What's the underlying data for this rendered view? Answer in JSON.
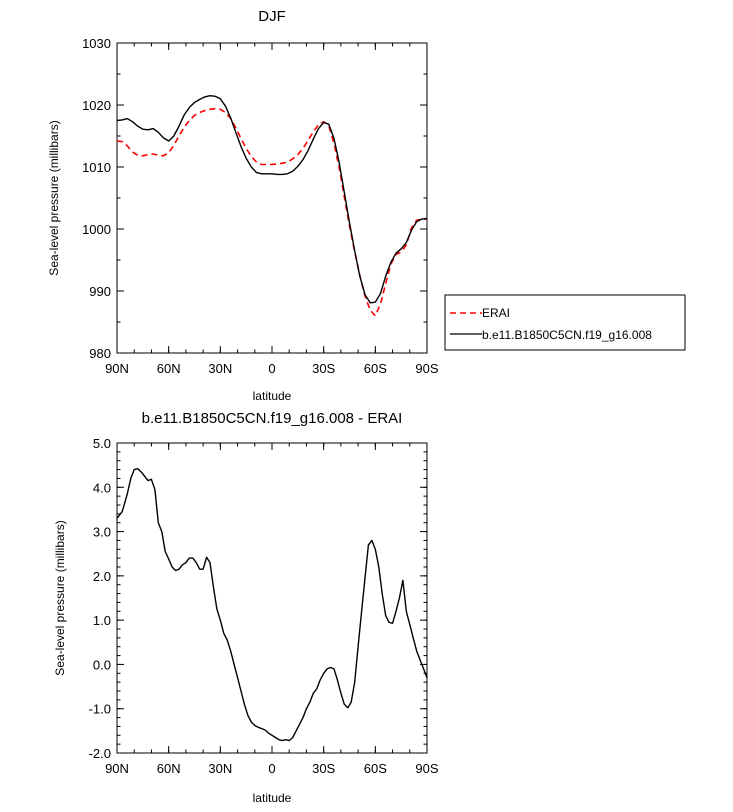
{
  "chart_data": [
    {
      "type": "line",
      "title": "DJF",
      "xlabel": "latitude",
      "ylabel": "Sea-level pressure (millibars)",
      "xlim": [
        90,
        -90
      ],
      "ylim": [
        980,
        1030
      ],
      "xticks": [
        90,
        60,
        30,
        0,
        -30,
        -60,
        -90
      ],
      "xtick_labels": [
        "90N",
        "60N",
        "30N",
        "0",
        "30S",
        "60S",
        "90S"
      ],
      "yticks": [
        980,
        990,
        1000,
        1010,
        1020,
        1030
      ],
      "ytick_labels": [
        "980",
        "990",
        "1000",
        "1010",
        "1020",
        "1030"
      ],
      "grid": false,
      "legend_position": "right",
      "series": [
        {
          "name": "ERAI",
          "color": "#ff0000",
          "dash": true,
          "x": [
            90,
            87,
            84,
            81,
            78,
            75,
            72,
            69,
            66,
            63,
            60,
            57,
            54,
            51,
            48,
            45,
            42,
            39,
            36,
            33,
            30,
            27,
            24,
            21,
            18,
            15,
            12,
            9,
            6,
            3,
            0,
            -3,
            -6,
            -9,
            -12,
            -15,
            -18,
            -21,
            -24,
            -27,
            -30,
            -33,
            -36,
            -39,
            -42,
            -45,
            -48,
            -51,
            -54,
            -57,
            -60,
            -63,
            -66,
            -69,
            -72,
            -75,
            -78,
            -81,
            -84,
            -87,
            -90
          ],
          "y": [
            1014.2,
            1014.1,
            1013.4,
            1012.4,
            1011.9,
            1011.8,
            1012.0,
            1012.1,
            1011.9,
            1011.8,
            1012.3,
            1013.5,
            1015.0,
            1016.4,
            1017.5,
            1018.3,
            1018.8,
            1019.1,
            1019.3,
            1019.4,
            1019.3,
            1018.8,
            1017.8,
            1016.3,
            1014.6,
            1013.0,
            1011.7,
            1010.8,
            1010.4,
            1010.4,
            1010.4,
            1010.5,
            1010.6,
            1010.8,
            1011.3,
            1012.0,
            1013.0,
            1014.3,
            1015.7,
            1016.8,
            1017.3,
            1016.6,
            1013.8,
            1009.9,
            1005.2,
            1000.5,
            996.3,
            992.5,
            989.2,
            986.9,
            986.0,
            987.9,
            991.2,
            994.3,
            995.9,
            996.3,
            997.4,
            1000.2,
            1001.4,
            1001.6,
            1001.6
          ]
        },
        {
          "name": "b.e11.B1850C5CN.f19_g16.008",
          "color": "#000000",
          "dash": false,
          "x": [
            90,
            87,
            84,
            81,
            78,
            75,
            72,
            69,
            66,
            63,
            60,
            57,
            54,
            51,
            48,
            45,
            42,
            39,
            36,
            33,
            30,
            27,
            24,
            21,
            18,
            15,
            12,
            9,
            6,
            3,
            0,
            -3,
            -6,
            -9,
            -12,
            -15,
            -18,
            -21,
            -24,
            -27,
            -30,
            -33,
            -36,
            -39,
            -42,
            -45,
            -48,
            -51,
            -54,
            -57,
            -60,
            -63,
            -66,
            -69,
            -72,
            -75,
            -78,
            -81,
            -84,
            -87,
            -90
          ],
          "y": [
            1017.5,
            1017.6,
            1017.8,
            1017.3,
            1016.6,
            1016.1,
            1016.0,
            1016.2,
            1015.6,
            1014.7,
            1014.2,
            1015.0,
            1016.6,
            1018.4,
            1019.6,
            1020.4,
            1020.9,
            1021.3,
            1021.5,
            1021.4,
            1021.0,
            1019.8,
            1017.9,
            1015.6,
            1013.3,
            1011.4,
            1010.0,
            1009.1,
            1008.9,
            1008.9,
            1008.9,
            1008.8,
            1008.8,
            1008.9,
            1009.3,
            1010.1,
            1011.2,
            1012.7,
            1014.5,
            1016.2,
            1017.2,
            1016.9,
            1014.6,
            1010.7,
            1005.9,
            1001.0,
            996.5,
            992.4,
            989.4,
            988.1,
            988.2,
            989.6,
            992.4,
            994.6,
            996.1,
            996.8,
            997.8,
            999.8,
            1001.2,
            1001.6,
            1001.7
          ]
        }
      ]
    },
    {
      "type": "line",
      "title": "b.e11.B1850C5CN.f19_g16.008 - ERAI",
      "xlabel": "latitude",
      "ylabel": "Sea-level pressure (millibars)",
      "xlim": [
        90,
        -90
      ],
      "ylim": [
        -2.0,
        5.0
      ],
      "xticks": [
        90,
        60,
        30,
        0,
        -30,
        -60,
        -90
      ],
      "xtick_labels": [
        "90N",
        "60N",
        "30N",
        "0",
        "30S",
        "60S",
        "90S"
      ],
      "yticks": [
        -2.0,
        -1.0,
        0.0,
        1.0,
        2.0,
        3.0,
        4.0,
        5.0
      ],
      "ytick_labels": [
        "-2.0",
        "-1.0",
        "0.0",
        "1.0",
        "2.0",
        "3.0",
        "4.0",
        "5.0"
      ],
      "grid": false,
      "series": [
        {
          "color": "#000000",
          "dash": false,
          "x": [
            90,
            87,
            84,
            82,
            80,
            78,
            76,
            74,
            72,
            70,
            68,
            66,
            64,
            62,
            60,
            58,
            56,
            54,
            52,
            50,
            48,
            46,
            44,
            42,
            40,
            38,
            36,
            34,
            32,
            30,
            28,
            26,
            24,
            22,
            20,
            18,
            16,
            14,
            12,
            10,
            8,
            6,
            4,
            2,
            0,
            -2,
            -4,
            -6,
            -8,
            -10,
            -12,
            -14,
            -16,
            -18,
            -20,
            -22,
            -24,
            -26,
            -28,
            -30,
            -32,
            -34,
            -36,
            -38,
            -40,
            -42,
            -44,
            -46,
            -48,
            -50,
            -52,
            -54,
            -56,
            -58,
            -60,
            -62,
            -64,
            -66,
            -68,
            -70,
            -72,
            -74,
            -76,
            -78,
            -80,
            -82,
            -84,
            -86,
            -88,
            -90
          ],
          "y": [
            3.3,
            3.45,
            3.85,
            4.2,
            4.4,
            4.42,
            4.35,
            4.25,
            4.15,
            4.18,
            3.95,
            3.2,
            3.0,
            2.55,
            2.38,
            2.2,
            2.12,
            2.15,
            2.25,
            2.3,
            2.4,
            2.4,
            2.3,
            2.15,
            2.15,
            2.42,
            2.3,
            1.75,
            1.25,
            1.0,
            0.7,
            0.55,
            0.3,
            0.0,
            -0.3,
            -0.6,
            -0.9,
            -1.15,
            -1.3,
            -1.38,
            -1.42,
            -1.45,
            -1.48,
            -1.55,
            -1.6,
            -1.65,
            -1.7,
            -1.72,
            -1.7,
            -1.72,
            -1.65,
            -1.5,
            -1.35,
            -1.2,
            -1.0,
            -0.85,
            -0.65,
            -0.55,
            -0.35,
            -0.2,
            -0.1,
            -0.07,
            -0.1,
            -0.35,
            -0.65,
            -0.9,
            -0.98,
            -0.85,
            -0.4,
            0.4,
            1.2,
            1.95,
            2.7,
            2.8,
            2.6,
            2.2,
            1.6,
            1.1,
            0.95,
            0.93,
            1.2,
            1.5,
            1.9,
            1.2,
            0.9,
            0.6,
            0.3,
            0.1,
            -0.1,
            -0.3
          ]
        }
      ]
    }
  ]
}
